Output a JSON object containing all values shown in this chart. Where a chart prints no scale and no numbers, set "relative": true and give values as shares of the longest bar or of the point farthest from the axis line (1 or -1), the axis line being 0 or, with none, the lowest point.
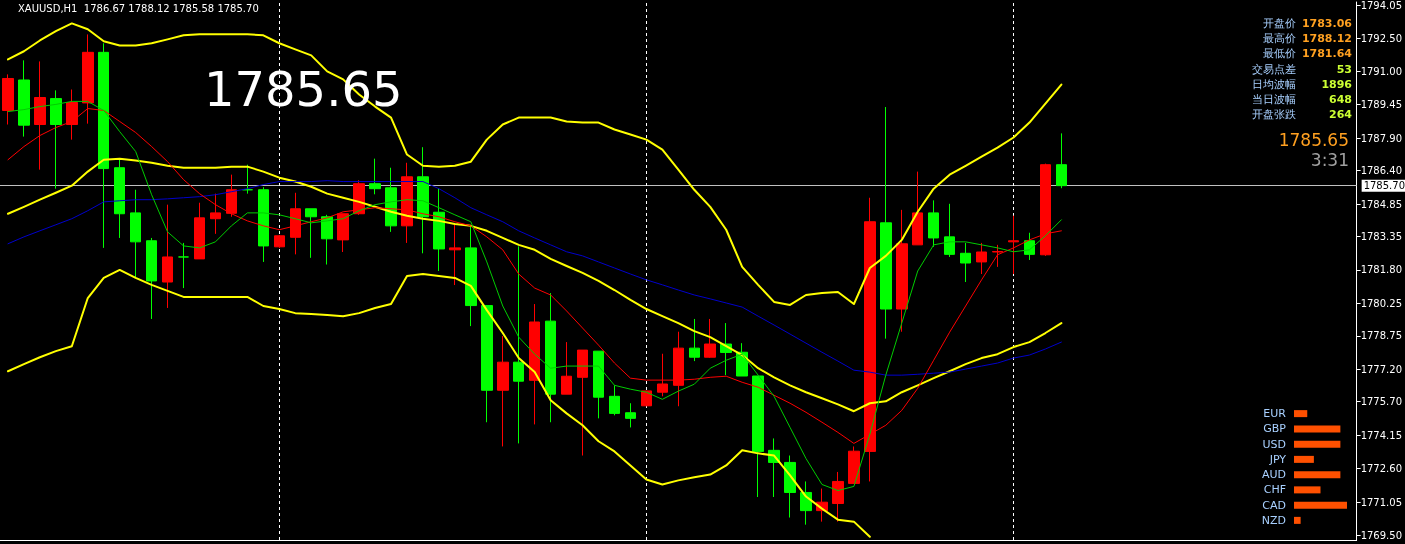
{
  "chart_data": [
    {
      "type": "candlestick",
      "title": "XAUUSD,H1  1786.67 1788.12 1785.58 1785.70",
      "annotations": [
        "1785.65",
        "开盘价",
        "1783.06",
        "最高价",
        "1788.12",
        "最低价",
        "1781.64",
        "交易点差",
        "53",
        "日均波幅",
        "1896",
        "当日波幅",
        "648",
        "开盘张跌",
        "264",
        "1785.65",
        "3:31"
      ],
      "categories": [
        null,
        null,
        null,
        null,
        null,
        null,
        null,
        null,
        null,
        null,
        null,
        null,
        null,
        null,
        null,
        null,
        null,
        null,
        null,
        null,
        null,
        null,
        null,
        null,
        null,
        null,
        null,
        null,
        null,
        null,
        null,
        null,
        null,
        null,
        null,
        null,
        null,
        null,
        null,
        null,
        null,
        null,
        null,
        null,
        null,
        null,
        null,
        null,
        null,
        null,
        null,
        null,
        null,
        null,
        null,
        null,
        null,
        null,
        null,
        null,
        null,
        null,
        null,
        null,
        null,
        null,
        null
      ],
      "ylim": [
        1769.3,
        1794.2
      ],
      "yticks": [
        {
          "value": 1794.05,
          "label": "1794.05"
        },
        {
          "value": 1792.5,
          "label": "1792.50"
        },
        {
          "value": 1791,
          "label": "1791.00"
        },
        {
          "value": 1789.45,
          "label": "1789.45"
        },
        {
          "value": 1787.9,
          "label": "1787.90"
        },
        {
          "value": 1786.4,
          "label": "1786.40"
        },
        {
          "value": 1784.85,
          "label": "1784.85"
        },
        {
          "value": 1783.35,
          "label": "1783.35"
        },
        {
          "value": 1781.8,
          "label": "1781.80"
        },
        {
          "value": 1780.25,
          "label": "1780.25"
        },
        {
          "value": 1778.75,
          "label": "1778.75"
        },
        {
          "value": 1777.2,
          "label": "1777.20"
        },
        {
          "value": 1775.7,
          "label": "1775.70"
        },
        {
          "value": 1774.15,
          "label": "1774.15"
        },
        {
          "value": 1772.6,
          "label": "1772.60"
        },
        {
          "value": 1771.05,
          "label": "1771.05"
        },
        {
          "value": 1769.5,
          "label": "1769.50"
        }
      ],
      "tick_labels": "y",
      "grid": "x",
      "ref_lines": [
        {
          "axis": "y",
          "value": 1785.7,
          "label": "1785.70",
          "color": "#c0c0c0"
        }
      ],
      "series": [
        {
          "type": "candlestick",
          "ohlc": [
            [
              1789.18,
              1790.85,
              1788.53,
              1790.66
            ],
            [
              1790.59,
              1791.5,
              1787.97,
              1788.5
            ],
            [
              1788.53,
              1791.45,
              1786.44,
              1789.78
            ],
            [
              1789.73,
              1790.11,
              1785.56,
              1788.53
            ],
            [
              1788.53,
              1790.15,
              1787.83,
              1789.55
            ],
            [
              1789.53,
              1792.7,
              1788.57,
              1791.87
            ],
            [
              1791.87,
              1792.29,
              1782.82,
              1786.49
            ],
            [
              1786.53,
              1786.9,
              1783.28,
              1784.4
            ],
            [
              1784.44,
              1785.51,
              1781.43,
              1783.1
            ],
            [
              1783.15,
              1783.28,
              1779.53,
              1781.29
            ],
            [
              1781.24,
              1784.82,
              1780.04,
              1782.4
            ],
            [
              1782.4,
              1783.05,
              1780.96,
              1782.4
            ],
            [
              1782.31,
              1784.91,
              1782.31,
              1784.21
            ],
            [
              1784.17,
              1785.33,
              1783.47,
              1784.44
            ],
            [
              1784.42,
              1786.21,
              1784.26,
              1785.51
            ],
            [
              1785.51,
              1786.67,
              1785.33,
              1785.51
            ],
            [
              1785.51,
              1785.63,
              1782.17,
              1782.91
            ],
            [
              1782.87,
              1783.42,
              1782.82,
              1783.38
            ],
            [
              1783.31,
              1785.37,
              1782.52,
              1784.63
            ],
            [
              1784.63,
              1784.63,
              1782.36,
              1784.26
            ],
            [
              1784.26,
              1784.35,
              1782.05,
              1783.24
            ],
            [
              1783.19,
              1784.4,
              1782.63,
              1784.4
            ],
            [
              1784.4,
              1785.95,
              1784.35,
              1785.79
            ],
            [
              1785.79,
              1786.95,
              1785.3,
              1785.56
            ],
            [
              1785.6,
              1786.53,
              1783.56,
              1783.84
            ],
            [
              1783.84,
              1786.76,
              1783.05,
              1786.11
            ],
            [
              1786.11,
              1787.48,
              1782.57,
              1784.26
            ],
            [
              1784.47,
              1785.56,
              1781.75,
              1782.77
            ],
            [
              1782.73,
              1783.93,
              1781.1,
              1782.82
            ],
            [
              1782.82,
              1783.79,
              1779.2,
              1780.15
            ],
            [
              1780.15,
              1780.15,
              1774.75,
              1776.23
            ],
            [
              1776.23,
              1778.74,
              1773.63,
              1777.53
            ],
            [
              1777.53,
              1782.89,
              1773.77,
              1776.65
            ],
            [
              1776.69,
              1780.22,
              1774.65,
              1779.39
            ],
            [
              1779.43,
              1780.73,
              1774.75,
              1776.05
            ],
            [
              1776.05,
              1778.46,
              1776.05,
              1776.88
            ],
            [
              1776.83,
              1778.09,
              1773.21,
              1778.09
            ],
            [
              1778.04,
              1778.04,
              1774.93,
              1775.91
            ],
            [
              1775.95,
              1776.46,
              1775.07,
              1775.16
            ],
            [
              1775.19,
              1775.63,
              1774.51,
              1774.93
            ],
            [
              1775.51,
              1776.2,
              1775.51,
              1776.2
            ],
            [
              1776.14,
              1777.92,
              1775.95,
              1776.52
            ],
            [
              1776.46,
              1778.94,
              1775.49,
              1778.18
            ],
            [
              1778.18,
              1779.53,
              1777.58,
              1777.76
            ],
            [
              1777.76,
              1779.53,
              1777.73,
              1778.37
            ],
            [
              1778.37,
              1779.34,
              1776.93,
              1777.98
            ],
            [
              1777.99,
              1778.41,
              1776.89,
              1776.89
            ],
            [
              1776.89,
              1776.89,
              1771.29,
              1773.4
            ],
            [
              1773.45,
              1774.0,
              1771.29,
              1772.89
            ],
            [
              1772.89,
              1773.21,
              1770.34,
              1771.5
            ],
            [
              1771.5,
              1772.01,
              1770.01,
              1770.66
            ],
            [
              1770.66,
              1771.68,
              1770.15,
              1771.05
            ],
            [
              1770.99,
              1772.45,
              1770.15,
              1772.01
            ],
            [
              1771.92,
              1773.63,
              1771.92,
              1773.41
            ],
            [
              1773.4,
              1785.14,
              1772.01,
              1784.03
            ],
            [
              1783.98,
              1789.34,
              1778.62,
              1779.99
            ],
            [
              1779.99,
              1784.58,
              1778.94,
              1783.01
            ],
            [
              1782.96,
              1786.35,
              1782.96,
              1784.44
            ],
            [
              1784.44,
              1785.02,
              1782.87,
              1783.28
            ],
            [
              1783.33,
              1784.86,
              1782.4,
              1782.52
            ],
            [
              1782.57,
              1783.05,
              1781.24,
              1782.12
            ],
            [
              1782.17,
              1783.05,
              1781.61,
              1782.63
            ],
            [
              1782.63,
              1782.96,
              1781.94,
              1782.65
            ],
            [
              1783.1,
              1784.31,
              1781.61,
              1783.15
            ],
            [
              1783.15,
              1783.52,
              1782.26,
              1782.52
            ],
            [
              1782.5,
              1786.72,
              1782.45,
              1786.67
            ],
            [
              1786.67,
              1788.12,
              1785.58,
              1785.7
            ]
          ],
          "colors": [
            "#ff0000",
            "#00ff00",
            "#ff0000",
            "#00ff00",
            "#ff0000",
            "#ff0000",
            "#00ff00",
            "#00ff00",
            "#00ff00",
            "#00ff00",
            "#ff0000",
            "#00ff00",
            "#ff0000",
            "#ff0000",
            "#ff0000",
            "#00ff00",
            "#00ff00",
            "#ff0000",
            "#ff0000",
            "#00ff00",
            "#00ff00",
            "#ff0000",
            "#ff0000",
            "#00ff00",
            "#00ff00",
            "#ff0000",
            "#00ff00",
            "#00ff00",
            "#ff0000",
            "#00ff00",
            "#00ff00",
            "#ff0000",
            "#00ff00",
            "#ff0000",
            "#00ff00",
            "#ff0000",
            "#ff0000",
            "#00ff00",
            "#00ff00",
            "#00ff00",
            "#ff0000",
            "#ff0000",
            "#ff0000",
            "#00ff00",
            "#ff0000",
            "#00ff00",
            "#00ff00",
            "#00ff00",
            "#00ff00",
            "#00ff00",
            "#00ff00",
            "#ff0000",
            "#ff0000",
            "#ff0000",
            "#ff0000",
            "#00ff00",
            "#ff0000",
            "#ff0000",
            "#00ff00",
            "#00ff00",
            "#00ff00",
            "#ff0000",
            "#ff0000",
            "#ff0000",
            "#00ff00",
            "#ff0000",
            "#00ff00"
          ]
        },
        {
          "type": "line",
          "color": "#ffff00",
          "values": [
            1791.54,
            1791.92,
            1792.42,
            1792.85,
            1793.21,
            1792.94,
            1792.38,
            1792.19,
            1792.19,
            1792.29,
            1792.47,
            1792.66,
            1792.71,
            1792.71,
            1792.71,
            1792.71,
            1792.66,
            1792.29,
            1792.01,
            1791.73,
            1790.99,
            1790.62,
            1789.92,
            1789.36,
            1788.85,
            1787.14,
            1786.62,
            1786.58,
            1786.62,
            1786.81,
            1787.83,
            1788.53,
            1788.85,
            1788.85,
            1788.85,
            1788.67,
            1788.62,
            1788.62,
            1788.3,
            1788.07,
            1787.83,
            1787.37,
            1786.44,
            1785.51,
            1784.72,
            1783.66,
            1781.94,
            1781.11,
            1780.32,
            1780.18,
            1780.64,
            1780.73,
            1780.78,
            1780.22,
            1781.89,
            1782.45,
            1783.19,
            1784.49,
            1785.56,
            1786.21,
            1786.62,
            1787.04,
            1787.46,
            1787.93,
            1788.62,
            1789.5,
            1790.38
          ]
        },
        {
          "type": "line",
          "color": "#ffff00",
          "values": [
            1784.4,
            1784.72,
            1785.05,
            1785.37,
            1785.7,
            1786.35,
            1786.9,
            1786.95,
            1786.86,
            1786.76,
            1786.62,
            1786.53,
            1786.53,
            1786.53,
            1786.58,
            1786.58,
            1786.35,
            1786.07,
            1785.89,
            1785.65,
            1785.33,
            1785.14,
            1784.95,
            1784.72,
            1784.49,
            1784.31,
            1784.17,
            1784.07,
            1783.93,
            1783.84,
            1783.61,
            1783.28,
            1782.96,
            1782.73,
            1782.31,
            1781.98,
            1781.66,
            1781.29,
            1780.87,
            1780.41,
            1779.99,
            1779.66,
            1779.34,
            1778.97,
            1778.69,
            1778.27,
            1777.86,
            1777.25,
            1776.83,
            1776.46,
            1776.14,
            1775.86,
            1775.58,
            1775.26,
            1775.63,
            1775.72,
            1776.14,
            1776.46,
            1776.79,
            1777.11,
            1777.44,
            1777.72,
            1777.9,
            1778.23,
            1778.46,
            1778.88,
            1779.34
          ]
        },
        {
          "type": "line",
          "color": "#ffff00",
          "values": [
            1777.11,
            1777.44,
            1777.76,
            1778.04,
            1778.27,
            1780.5,
            1781.43,
            1781.8,
            1781.43,
            1781.11,
            1780.83,
            1780.55,
            1780.55,
            1780.55,
            1780.55,
            1780.55,
            1780.13,
            1779.99,
            1779.8,
            1779.76,
            1779.71,
            1779.66,
            1779.8,
            1780.04,
            1780.22,
            1781.52,
            1781.61,
            1781.52,
            1781.43,
            1781.06,
            1779.94,
            1778.88,
            1777.72,
            1777.07,
            1775.77,
            1775.16,
            1774.61,
            1773.87,
            1773.4,
            1772.75,
            1772.1,
            1771.87,
            1772.06,
            1772.2,
            1772.33,
            1772.75,
            1773.45,
            1773.31,
            1773.21,
            1772.29,
            1771.31,
            1770.75,
            1770.24,
            1770.15,
            1769.45,
            null,
            null,
            null,
            null,
            null,
            null,
            null,
            null,
            null,
            null,
            null,
            null
          ]
        },
        {
          "type": "line",
          "color": "#0000cc",
          "values": [
            1783.01,
            1783.33,
            1783.61,
            1783.89,
            1784.17,
            1784.54,
            1784.95,
            1785.0,
            1785.05,
            1785.05,
            1785.09,
            1785.14,
            1785.19,
            1785.28,
            1785.42,
            1785.56,
            1785.75,
            1785.89,
            1785.89,
            1785.89,
            1785.93,
            1785.89,
            1785.89,
            1785.89,
            1785.89,
            1785.89,
            1785.89,
            1785.56,
            1785.14,
            1784.68,
            1784.35,
            1784.03,
            1783.61,
            1783.28,
            1782.96,
            1782.64,
            1782.45,
            1782.17,
            1781.89,
            1781.61,
            1781.34,
            1781.11,
            1780.87,
            1780.64,
            1780.46,
            1780.27,
            1780.08,
            1779.66,
            1779.25,
            1778.83,
            1778.41,
            1777.99,
            1777.58,
            1777.16,
            1777.07,
            1776.93,
            1776.93,
            1776.97,
            1777.02,
            1777.07,
            1777.21,
            1777.35,
            1777.49,
            1777.72,
            1777.86,
            1778.14,
            1778.46
          ]
        },
        {
          "type": "line",
          "color": "#ff0000",
          "values": [
            1786.9,
            1787.51,
            1788.02,
            1788.39,
            1788.67,
            1789.27,
            1789.18,
            1788.67,
            1788.16,
            1787.51,
            1786.81,
            1785.98,
            1785.33,
            1784.82,
            1784.4,
            1784.07,
            1783.84,
            1783.66,
            1783.84,
            1784.03,
            1784.21,
            1784.49,
            1784.58,
            1784.68,
            1784.63,
            1784.58,
            1784.4,
            1784.26,
            1784.03,
            1783.84,
            1783.33,
            1782.73,
            1781.61,
            1780.96,
            1780.64,
            1779.9,
            1779.11,
            1778.32,
            1777.49,
            1776.79,
            1776.7,
            1776.7,
            1776.7,
            1776.74,
            1776.83,
            1776.88,
            1776.6,
            1776.37,
            1776.0,
            1775.63,
            1775.21,
            1774.75,
            1774.28,
            1773.77,
            1774.19,
            1774.61,
            1775.3,
            1776.32,
            1777.62,
            1778.92,
            1780.13,
            1781.34,
            1782.5,
            1782.82,
            1783.19,
            1783.47,
            1783.61
          ]
        },
        {
          "type": "line",
          "color": "#00cc00",
          "values": [
            1789.13,
            1789.22,
            1789.36,
            1789.46,
            1789.6,
            1789.6,
            1789.18,
            1788.2,
            1787.28,
            1785.28,
            1783.56,
            1782.91,
            1782.82,
            1783.1,
            1783.84,
            1784.44,
            1784.44,
            1784.35,
            1784.17,
            1783.98,
            1784.07,
            1784.17,
            1784.54,
            1784.82,
            1784.95,
            1785.05,
            1785.0,
            1784.68,
            1784.35,
            1784.03,
            1782.17,
            1780.13,
            1778.69,
            1777.9,
            1777.25,
            1777.35,
            1777.35,
            1777.35,
            1776.46,
            1776.28,
            1776.14,
            1775.81,
            1776.19,
            1776.51,
            1777.25,
            1777.62,
            1777.9,
            1776.93,
            1775.95,
            1774.51,
            1773.07,
            1771.87,
            1771.59,
            1771.78,
            1774.19,
            1776.93,
            1779.34,
            1781.75,
            1782.96,
            1783.1,
            1783.1,
            1782.96,
            1782.82,
            1782.64,
            1782.73,
            1783.38,
            1784.12
          ]
        }
      ]
    },
    {
      "type": "bar",
      "orientation": "horizontal",
      "relative": true,
      "tick_labels": "y",
      "grid": false,
      "categories": [
        "EUR",
        "GBP",
        "USD",
        "JPY",
        "AUD",
        "CHF",
        "CAD",
        "NZD"
      ],
      "values": [
        0.25,
        0.875,
        0.875,
        0.375,
        0.875,
        0.5,
        1,
        0.125
      ],
      "color": "#ff5000"
    }
  ]
}
